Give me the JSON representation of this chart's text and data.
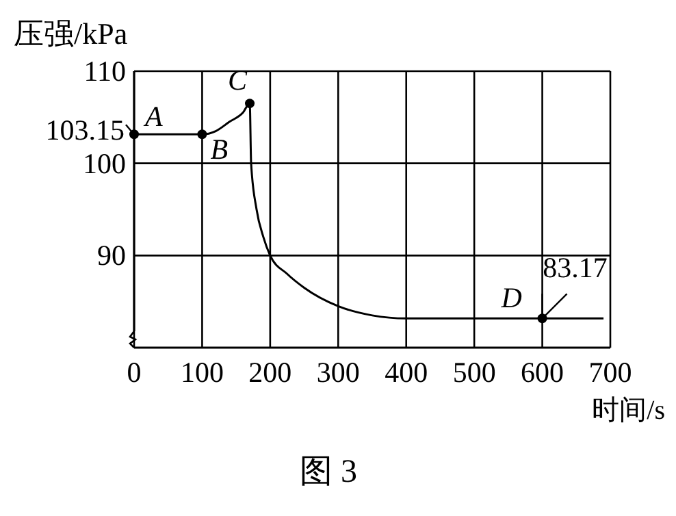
{
  "chart_data": {
    "type": "line",
    "xlabel": "时间/s",
    "ylabel": "压强/kPa",
    "xlim": [
      0,
      700
    ],
    "ylim": [
      80,
      110
    ],
    "xticks": [
      0,
      100,
      200,
      300,
      400,
      500,
      600,
      700
    ],
    "yticks": [
      90,
      100,
      {
        "value": 103.15,
        "label": "103.15"
      },
      110
    ],
    "grid": true,
    "series": [
      {
        "color": "#000000",
        "marker": "none",
        "x": [
          0,
          100,
          120,
          140,
          160,
          170,
          172,
          180,
          190,
          200,
          225,
          250,
          300,
          350,
          400,
          500,
          600,
          690
        ],
        "values": [
          103.15,
          103.15,
          103.5,
          104.5,
          105.5,
          106.5,
          100,
          95,
          92,
          90,
          88,
          86.5,
          84.5,
          83.5,
          83.17,
          83.17,
          83.17,
          83.17
        ]
      },
      {
        "type": "scatter",
        "color": "#000000",
        "marker": "circle",
        "x": [
          0,
          100,
          170,
          600
        ],
        "values": [
          103.15,
          103.15,
          106.5,
          83.17
        ]
      }
    ],
    "annotations": [
      {
        "text": "A",
        "x": 0,
        "y": 103.15
      },
      {
        "text": "B",
        "x": 100,
        "y": 103.15
      },
      {
        "text": "C",
        "x": 170,
        "y": 106.5
      },
      {
        "text": "D",
        "x": 600,
        "y": 83.17
      },
      {
        "text": "83.17",
        "x": 600,
        "y": 83.17
      },
      "图 3"
    ]
  }
}
